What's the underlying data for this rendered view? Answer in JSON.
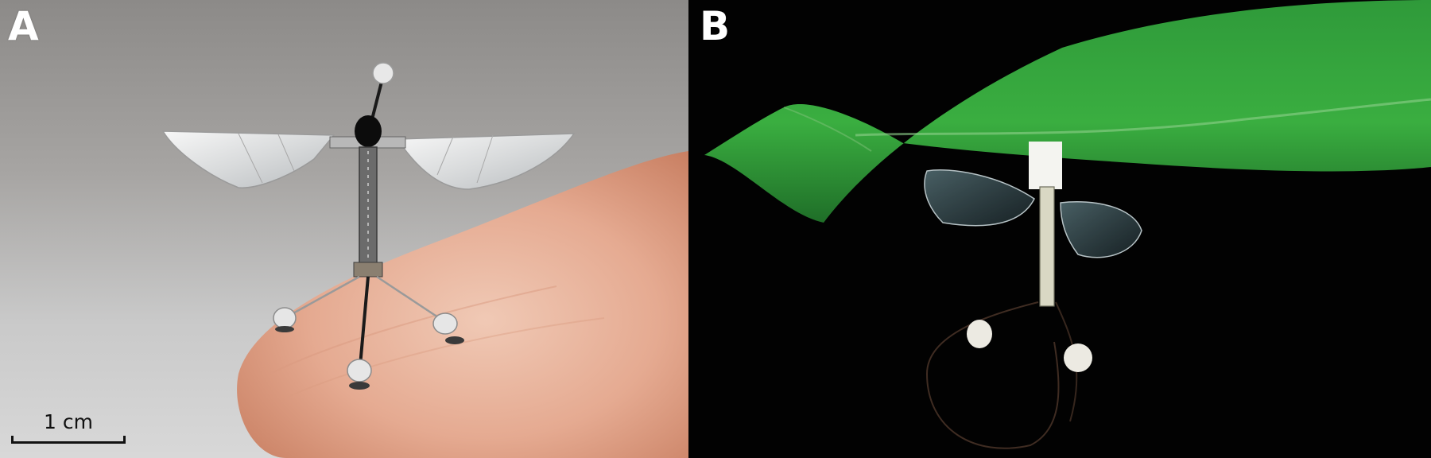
{
  "figure": {
    "panels": [
      {
        "label": "A",
        "subject": "robotic-insect-on-fingertip",
        "scale_bar": {
          "label": "1 cm"
        }
      },
      {
        "label": "B",
        "subject": "robotic-insect-perched-under-leaf"
      }
    ]
  }
}
